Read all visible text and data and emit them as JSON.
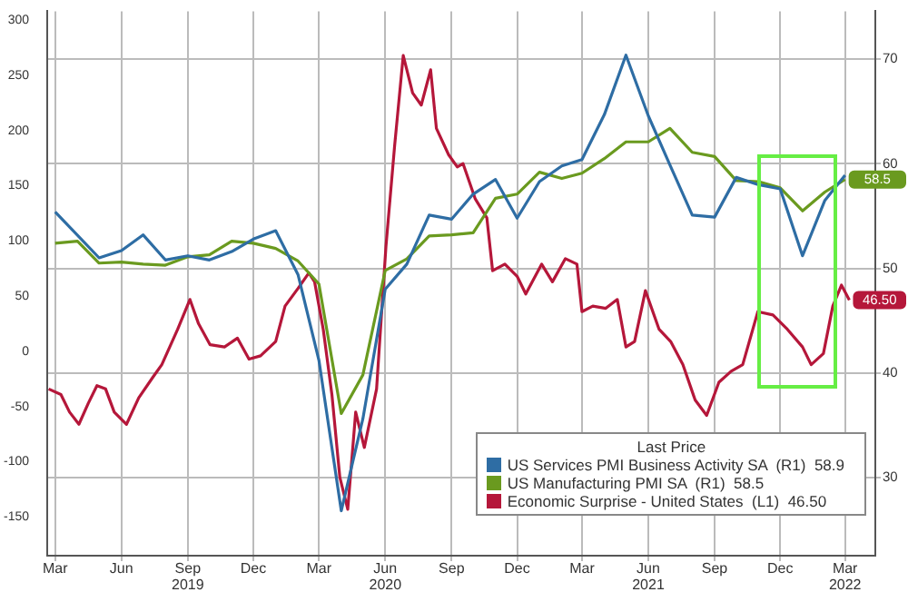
{
  "chart_data": {
    "type": "line",
    "legend_title": "Last Price",
    "legend": "bottom right",
    "grid": true,
    "xlim": [
      "2019-02-18",
      "2022-04-12"
    ],
    "xticks": [
      {
        "value": "2019-03-01",
        "label": "Mar"
      },
      {
        "value": "2019-06-01",
        "label": "Jun"
      },
      {
        "value": "2019-09-01",
        "label": "Sep\n2019"
      },
      {
        "value": "2019-12-01",
        "label": "Dec"
      },
      {
        "value": "2020-03-01",
        "label": "Mar"
      },
      {
        "value": "2020-06-01",
        "label": "Jun\n2020"
      },
      {
        "value": "2020-09-01",
        "label": "Sep"
      },
      {
        "value": "2020-12-01",
        "label": "Dec"
      },
      {
        "value": "2021-03-01",
        "label": "Mar"
      },
      {
        "value": "2021-06-01",
        "label": "Jun\n2021"
      },
      {
        "value": "2021-09-01",
        "label": "Sep"
      },
      {
        "value": "2021-12-01",
        "label": "Dec"
      },
      {
        "value": "2022-03-01",
        "label": "Mar\n2022"
      }
    ],
    "ylim": [
      -185,
      308
    ],
    "yticks": [
      -150,
      -100,
      -50,
      0,
      50,
      100,
      150,
      200,
      250,
      300
    ],
    "y2lim": [
      22.5,
      74.6
    ],
    "y2ticks": [
      30,
      40,
      50,
      60,
      70
    ],
    "series": [
      {
        "name": "US Services PMI Business Activity SA  (R1)  58.9",
        "color": "#2e6da4",
        "axis": "y2",
        "x": [
          "2019-03",
          "2019-05",
          "2019-06",
          "2019-07",
          "2019-08",
          "2019-09",
          "2019-10",
          "2019-11",
          "2019-12",
          "2020-01",
          "2020-02",
          "2020-03",
          "2020-04",
          "2020-05",
          "2020-06",
          "2020-07",
          "2020-08",
          "2020-09",
          "2020-10",
          "2020-11",
          "2020-12",
          "2021-01",
          "2021-02",
          "2021-03",
          "2021-04",
          "2021-05",
          "2021-06",
          "2021-07",
          "2021-08",
          "2021-09",
          "2021-10",
          "2021-11",
          "2021-12",
          "2022-01",
          "2022-02",
          "2022-03"
        ],
        "values": [
          55.4,
          51.0,
          51.7,
          53.2,
          50.8,
          51.2,
          50.8,
          51.6,
          52.8,
          53.6,
          49.4,
          41.2,
          26.8,
          35.6,
          48.0,
          50.4,
          55.1,
          54.7,
          57.1,
          58.5,
          54.8,
          58.3,
          59.8,
          60.4,
          64.7,
          70.4,
          64.6,
          59.9,
          55.1,
          54.9,
          58.7,
          58.0,
          57.6,
          51.2,
          56.5,
          58.9
        ]
      },
      {
        "name": "US Manufacturing PMI SA  (R1)  58.5",
        "color": "#6a9a1f",
        "axis": "y2",
        "x": [
          "2019-03",
          "2019-04",
          "2019-05",
          "2019-06",
          "2019-07",
          "2019-08",
          "2019-09",
          "2019-10",
          "2019-11",
          "2019-12",
          "2020-01",
          "2020-02",
          "2020-03",
          "2020-04",
          "2020-05",
          "2020-06",
          "2020-07",
          "2020-08",
          "2020-09",
          "2020-10",
          "2020-11",
          "2020-12",
          "2021-01",
          "2021-02",
          "2021-03",
          "2021-04",
          "2021-05",
          "2021-06",
          "2021-07",
          "2021-08",
          "2021-09",
          "2021-10",
          "2021-11",
          "2021-12",
          "2022-01",
          "2022-02",
          "2022-03"
        ],
        "values": [
          52.4,
          52.6,
          50.5,
          50.6,
          50.4,
          50.3,
          51.1,
          51.3,
          52.6,
          52.4,
          51.9,
          50.7,
          48.5,
          36.1,
          39.8,
          49.8,
          50.9,
          53.1,
          53.2,
          53.4,
          56.7,
          57.1,
          59.2,
          58.6,
          59.1,
          60.5,
          62.1,
          62.1,
          63.4,
          61.1,
          60.7,
          58.4,
          58.3,
          57.7,
          55.5,
          57.3,
          58.5
        ],
        "value_labels": [
          null,
          null,
          null,
          null,
          null,
          null,
          null,
          null,
          null,
          null,
          null,
          null,
          null,
          null,
          null,
          null,
          null,
          null,
          null,
          null,
          null,
          null,
          null,
          null,
          null,
          null,
          null,
          null,
          null,
          null,
          null,
          null,
          null,
          null,
          null,
          null,
          "58.5"
        ]
      },
      {
        "name": "Economic Surprise - United States  (L1)  46.50",
        "color": "#b5173a",
        "axis": "y",
        "x": [
          "2019-02-20",
          "2019-03-09",
          "2019-03-21",
          "2019-04-03",
          "2019-04-16",
          "2019-04-28",
          "2019-05-10",
          "2019-05-22",
          "2019-06-08",
          "2019-06-25",
          "2019-07-15",
          "2019-07-27",
          "2019-08-18",
          "2019-09-04",
          "2019-09-16",
          "2019-10-02",
          "2019-10-22",
          "2019-11-09",
          "2019-11-25",
          "2019-12-11",
          "2020-01-01",
          "2020-01-14",
          "2020-02-01",
          "2020-02-16",
          "2020-02-24",
          "2020-03-07",
          "2020-03-19",
          "2020-03-30",
          "2020-04-10",
          "2020-04-21",
          "2020-05-03",
          "2020-05-20",
          "2020-06-02",
          "2020-06-14",
          "2020-06-26",
          "2020-07-09",
          "2020-07-21",
          "2020-08-03",
          "2020-08-11",
          "2020-08-28",
          "2020-09-09",
          "2020-09-17",
          "2020-10-04",
          "2020-10-20",
          "2020-10-28",
          "2020-11-14",
          "2020-12-01",
          "2020-12-13",
          "2021-01-04",
          "2021-01-19",
          "2021-02-06",
          "2021-02-22",
          "2021-03-01",
          "2021-03-16",
          "2021-04-03",
          "2021-04-19",
          "2021-05-01",
          "2021-05-13",
          "2021-05-28",
          "2021-06-16",
          "2021-07-02",
          "2021-07-19",
          "2021-08-05",
          "2021-08-21",
          "2021-09-07",
          "2021-09-24",
          "2021-10-10",
          "2021-10-31",
          "2021-11-21",
          "2021-12-11",
          "2022-01-01",
          "2022-01-13",
          "2022-01-30",
          "2022-02-12",
          "2022-02-24",
          "2022-03-07"
        ],
        "values": [
          -34,
          -39,
          -55,
          -66,
          -47,
          -31,
          -34,
          -55,
          -66,
          -42,
          -23,
          -12,
          20,
          47,
          25,
          6,
          4,
          12,
          -7,
          -4,
          9,
          41,
          57,
          71,
          63,
          20,
          -39,
          -114,
          -143,
          -55,
          -87,
          -34,
          95,
          186,
          268,
          234,
          223,
          255,
          202,
          178,
          167,
          170,
          138,
          121,
          73,
          79,
          68,
          52,
          79,
          63,
          84,
          79,
          36,
          41,
          39,
          47,
          4,
          9,
          55,
          20,
          9,
          -12,
          -44,
          -58,
          -28,
          -18,
          -12,
          36,
          33,
          20,
          4,
          -12,
          -2,
          41,
          60,
          46.5
        ],
        "value_labels": [
          null,
          null,
          null,
          null,
          null,
          null,
          null,
          null,
          null,
          null,
          null,
          null,
          null,
          null,
          null,
          null,
          null,
          null,
          null,
          null,
          null,
          null,
          null,
          null,
          null,
          null,
          null,
          null,
          null,
          null,
          null,
          null,
          null,
          null,
          null,
          null,
          null,
          null,
          null,
          null,
          null,
          null,
          null,
          null,
          null,
          null,
          null,
          null,
          null,
          null,
          null,
          null,
          null,
          null,
          null,
          null,
          null,
          null,
          null,
          null,
          null,
          null,
          null,
          null,
          null,
          null,
          null,
          null,
          null,
          null,
          null,
          null,
          null,
          null,
          null,
          "46.50"
        ]
      }
    ]
  }
}
